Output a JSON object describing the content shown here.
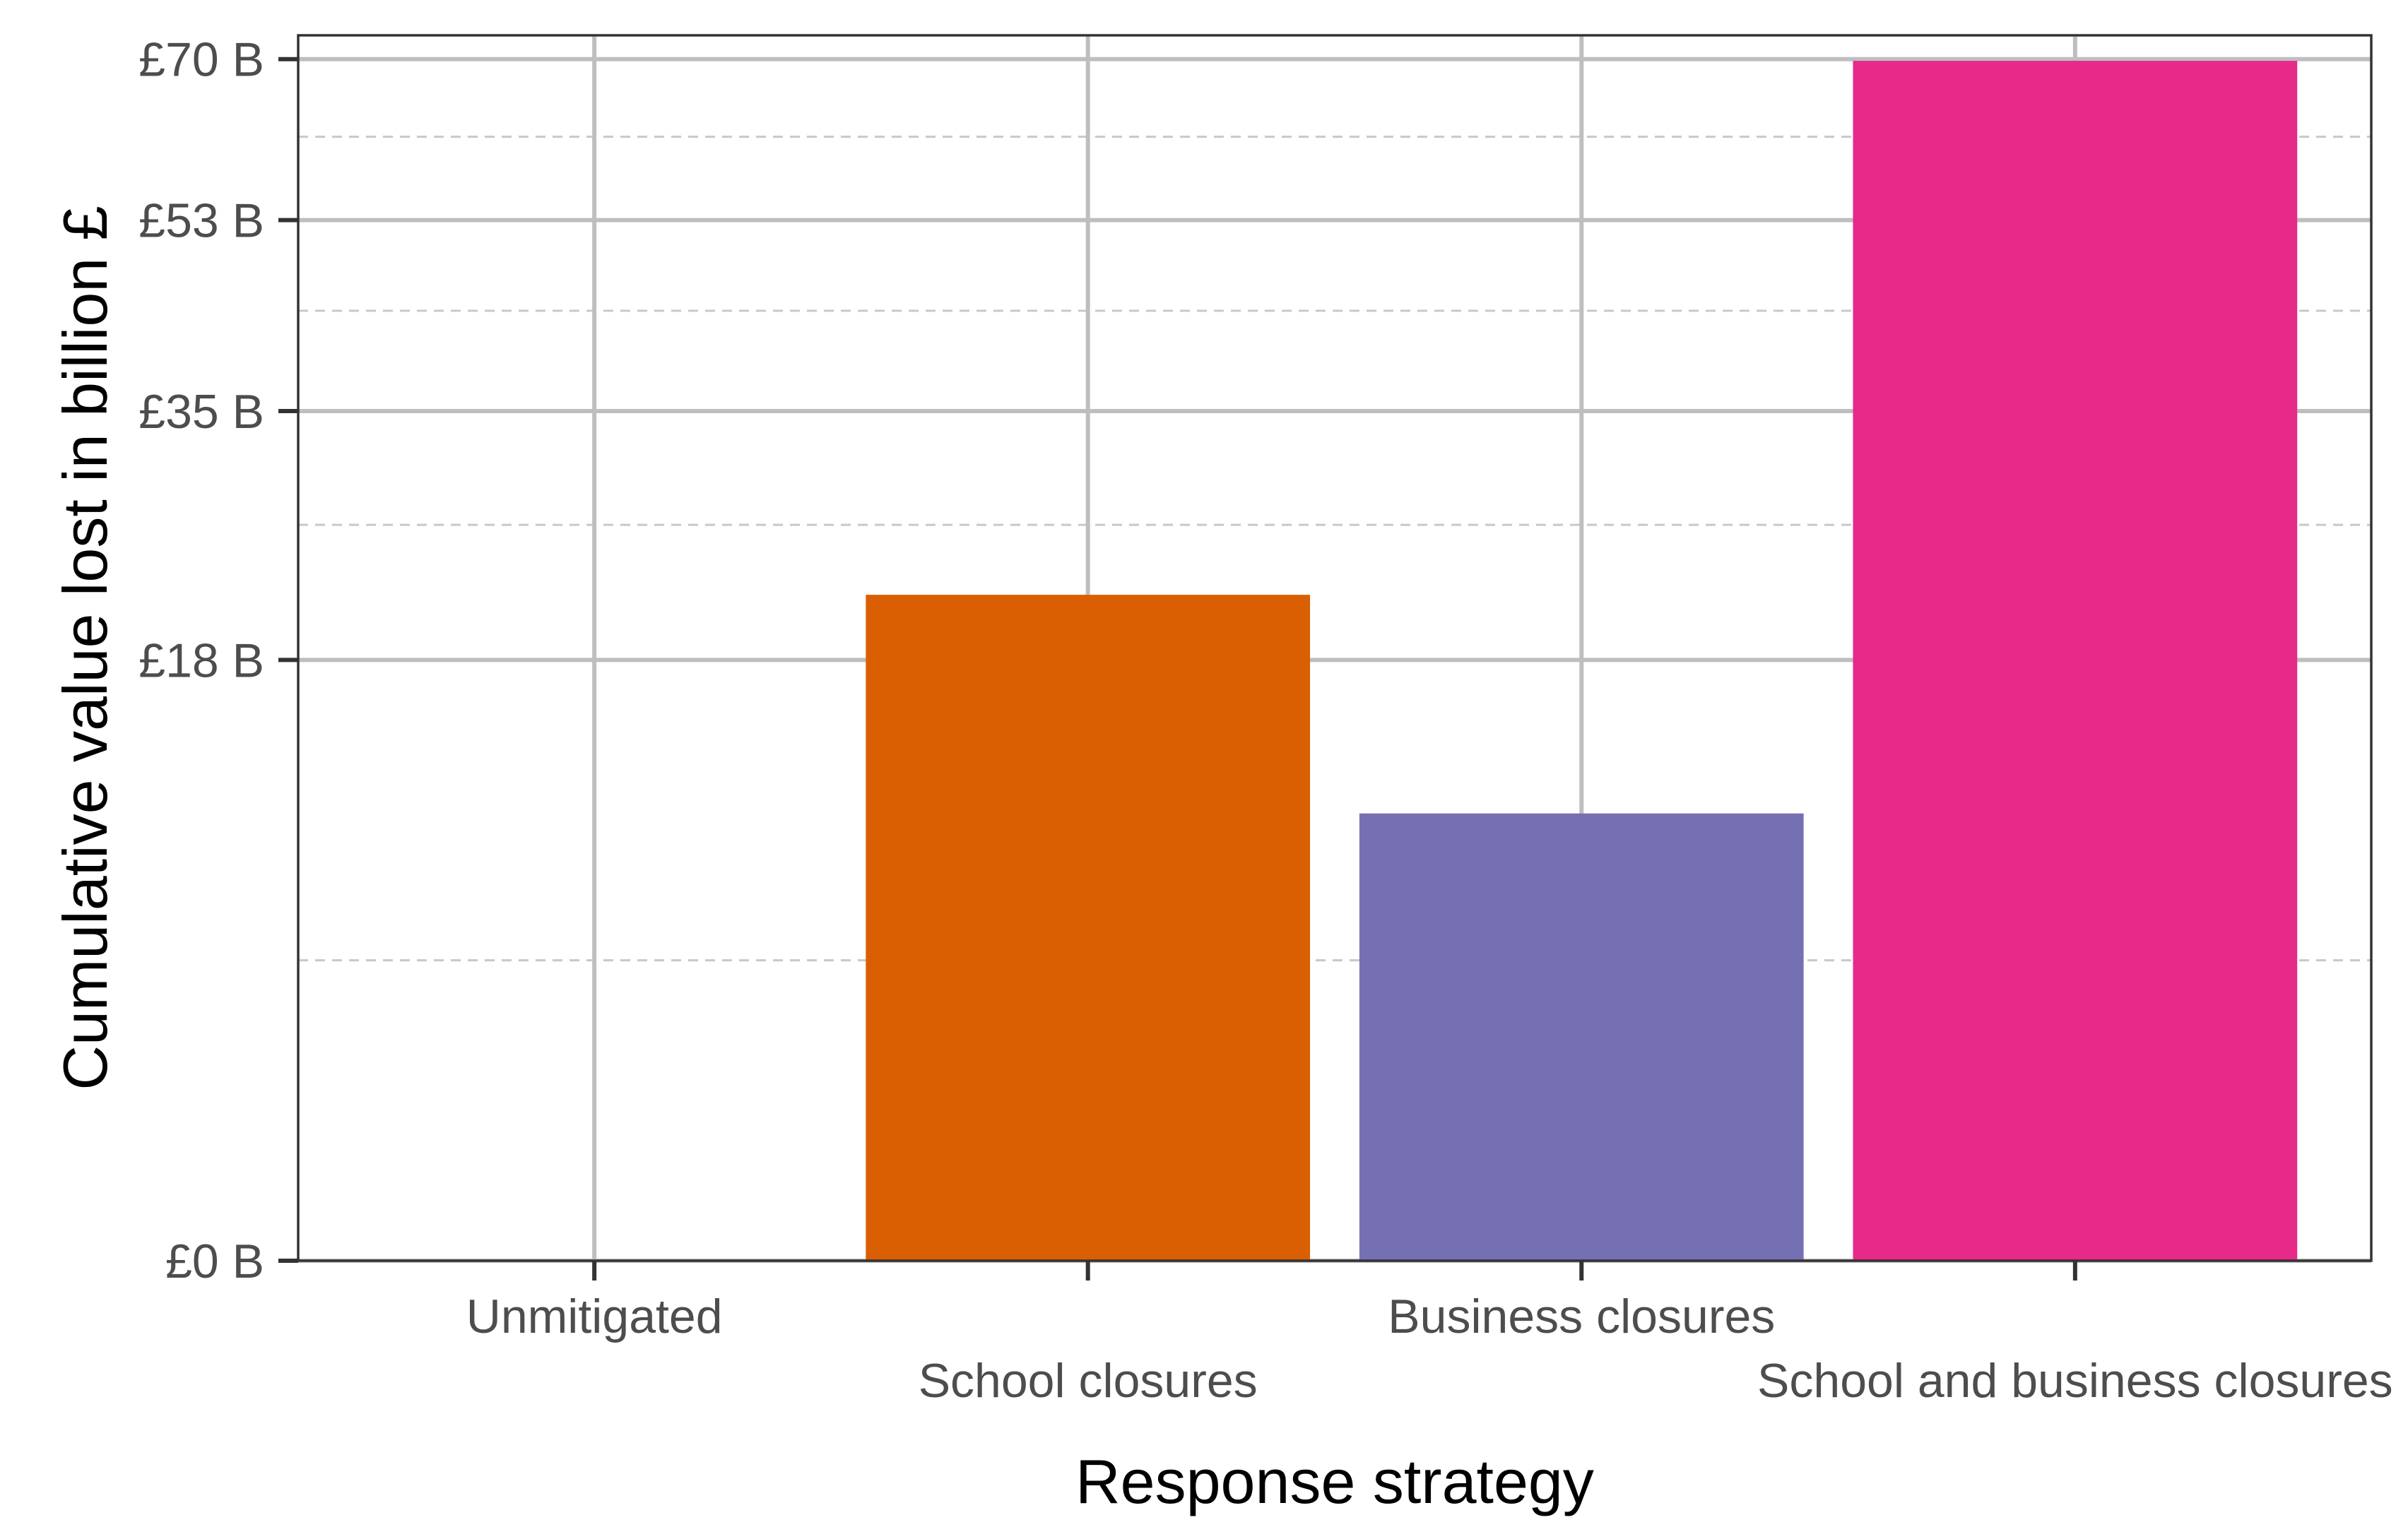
{
  "chart_data": {
    "type": "bar",
    "title": "",
    "xlabel": "Response strategy",
    "ylabel": "Cumulative value lost in billion £",
    "categories": [
      "Unmitigated",
      "School closures",
      "Business closures",
      "School and business closures"
    ],
    "values": [
      0,
      21.5,
      9.7,
      69.8
    ],
    "colors": [
      "#ffffff",
      "#d95f02",
      "#7570b3",
      "#e7298a"
    ],
    "y_scale": "sqrt",
    "ylim": [
      0,
      72.8
    ],
    "xlim": [
      0.4,
      4.6
    ],
    "y_ticks": [
      {
        "value": 0,
        "label": "£0 B"
      },
      {
        "value": 17.5,
        "label": "£18 B"
      },
      {
        "value": 35,
        "label": "£35 B"
      },
      {
        "value": 52.5,
        "label": "£53 B"
      },
      {
        "value": 70,
        "label": "£70 B"
      }
    ],
    "y_minor_ticks": [
      4.375,
      26.25,
      43.75,
      61.25
    ],
    "bar_width": 0.9,
    "grid": true,
    "legend": "none",
    "theme": {
      "grid_major": "#bebebe",
      "grid_minor": "#c8c8c8",
      "panel_border": "#333333",
      "tick_mark": "#333333",
      "tick_text": "#4d4d4d",
      "title_text": "#000000"
    }
  }
}
